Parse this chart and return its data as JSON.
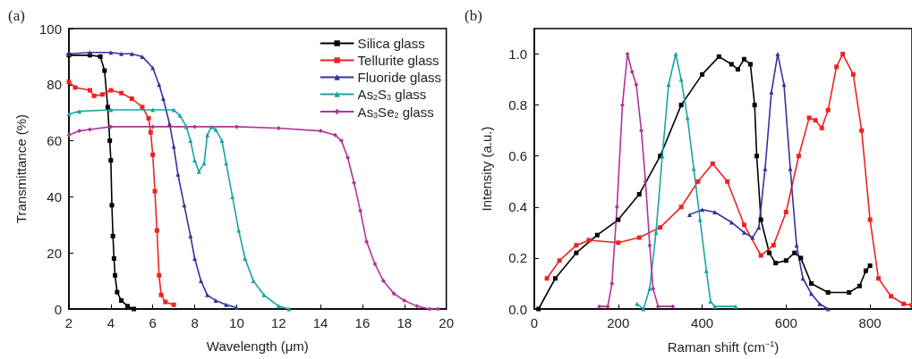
{
  "chart_data": [
    {
      "type": "line",
      "title": "(a)",
      "xlabel": "Wavelength (μm)",
      "ylabel": "Transmittance (%)",
      "xlim": [
        2,
        20
      ],
      "xticks": [
        2,
        4,
        6,
        8,
        10,
        12,
        14,
        16,
        18,
        20
      ],
      "ylim": [
        0,
        100
      ],
      "yticks": [
        0,
        20,
        40,
        60,
        80,
        100
      ],
      "grid": false,
      "legend": "top right",
      "series": [
        {
          "name": "Silica glass",
          "color": "#000000",
          "marker": "square",
          "x": [
            2,
            3,
            3.5,
            3.7,
            3.85,
            3.95,
            4.0,
            4.05,
            4.1,
            4.15,
            4.2,
            4.3,
            4.5,
            4.8,
            5.1
          ],
          "values": [
            90.5,
            90.5,
            90,
            85,
            72,
            60,
            53,
            37,
            26,
            18,
            12,
            6,
            3,
            1,
            0
          ]
        },
        {
          "name": "Tellurite glass",
          "color": "#ee2222",
          "marker": "square",
          "x": [
            2,
            2.3,
            3,
            3.2,
            3.6,
            4,
            4.5,
            5,
            5.5,
            5.8,
            5.9,
            6.0,
            6.1,
            6.2,
            6.3,
            6.4,
            6.6,
            7
          ],
          "values": [
            81,
            79,
            78,
            76,
            76.5,
            78,
            77,
            75,
            72,
            68,
            63,
            55,
            42,
            28,
            12,
            5,
            2.5,
            1.5
          ]
        },
        {
          "name": "Fluoride glass",
          "color": "#333399",
          "marker": "triangle",
          "x": [
            2,
            3,
            4,
            4.5,
            5,
            5.5,
            6,
            6.3,
            6.5,
            6.8,
            7.0,
            7.2,
            7.5,
            7.8,
            8.0,
            8.3,
            8.6,
            9,
            9.5,
            10
          ],
          "values": [
            91,
            91.5,
            91.5,
            91,
            91,
            90,
            86,
            80,
            75,
            66,
            58,
            48,
            37,
            26,
            18,
            10,
            5,
            3,
            1.5,
            0.5
          ]
        },
        {
          "name": "As$_{2}$S$_{3}$ glass",
          "color": "#1aa3a3",
          "marker": "triangle",
          "x": [
            2,
            2.5,
            4,
            6,
            7,
            7.3,
            7.6,
            7.8,
            8.0,
            8.2,
            8.45,
            8.6,
            8.8,
            9.0,
            9.3,
            9.5,
            9.8,
            10.1,
            10.4,
            10.8,
            11.3,
            12,
            12.5
          ],
          "values": [
            69.5,
            70.5,
            71,
            71,
            71,
            69,
            65,
            60,
            53,
            49,
            52,
            62,
            65,
            64,
            60,
            52,
            40,
            28,
            18,
            10,
            5,
            1,
            0
          ]
        },
        {
          "name": "As$_{3}$Se$_{2}$ glass",
          "color": "#b03399",
          "marker": "diamond",
          "x": [
            2,
            2.5,
            3,
            4,
            6,
            8,
            10,
            12,
            14,
            14.7,
            15,
            15.3,
            15.6,
            15.9,
            16.2,
            16.6,
            17,
            17.5,
            18,
            18.6,
            19.2,
            19.6
          ],
          "values": [
            62,
            63.5,
            64,
            65,
            65,
            65,
            65,
            64.5,
            63.5,
            62,
            60,
            54,
            45,
            35,
            24,
            16,
            10,
            5.5,
            3,
            1,
            0,
            0
          ]
        }
      ]
    },
    {
      "type": "line",
      "title": "(b)",
      "xlabel": "Raman shift (cm$^{−1}$)",
      "ylabel": "Intensity (a.u.)",
      "xlim": [
        0,
        900
      ],
      "xticks": [
        0,
        200,
        400,
        600,
        800
      ],
      "ylim": [
        0,
        1.1
      ],
      "yticks": [
        {
          "value": 0,
          "label": "0.0"
        },
        {
          "value": 0.2,
          "label": "0.2"
        },
        {
          "value": 0.4,
          "label": "0.4"
        },
        {
          "value": 0.6,
          "label": "0.6"
        },
        {
          "value": 0.8,
          "label": "0.8"
        },
        {
          "value": 1,
          "label": "1.0"
        }
      ],
      "grid": false,
      "series": [
        {
          "color": "#000000",
          "marker": "square",
          "x": [
            10,
            50,
            100,
            150,
            200,
            250,
            300,
            350,
            400,
            440,
            470,
            485,
            500,
            515,
            525,
            530,
            540,
            560,
            575,
            600,
            620,
            635,
            660,
            700,
            750,
            775,
            790,
            800
          ],
          "values": [
            0,
            0.12,
            0.22,
            0.29,
            0.35,
            0.45,
            0.6,
            0.8,
            0.92,
            0.99,
            0.96,
            0.94,
            0.98,
            0.96,
            0.8,
            0.6,
            0.35,
            0.22,
            0.18,
            0.19,
            0.22,
            0.2,
            0.1,
            0.065,
            0.065,
            0.09,
            0.15,
            0.17
          ]
        },
        {
          "color": "#ee2222",
          "marker": "square",
          "x": [
            30,
            60,
            100,
            130,
            200,
            250,
            300,
            350,
            390,
            425,
            460,
            500,
            540,
            570,
            600,
            630,
            655,
            670,
            685,
            700,
            720,
            735,
            760,
            780,
            800,
            820,
            850,
            880,
            900
          ],
          "values": [
            0.12,
            0.19,
            0.25,
            0.27,
            0.26,
            0.28,
            0.32,
            0.4,
            0.5,
            0.57,
            0.5,
            0.33,
            0.21,
            0.25,
            0.38,
            0.6,
            0.75,
            0.74,
            0.71,
            0.78,
            0.95,
            1.0,
            0.92,
            0.7,
            0.35,
            0.12,
            0.05,
            0.02,
            0.015
          ]
        },
        {
          "color": "#333399",
          "marker": "triangle",
          "x": [
            370,
            400,
            430,
            470,
            500,
            520,
            535,
            550,
            565,
            580,
            595,
            610,
            625,
            640,
            660,
            680,
            700
          ],
          "values": [
            0.37,
            0.39,
            0.38,
            0.34,
            0.3,
            0.28,
            0.32,
            0.55,
            0.85,
            1.0,
            0.88,
            0.55,
            0.25,
            0.12,
            0.06,
            0.02,
            0
          ]
        },
        {
          "color": "#1aa3a3",
          "marker": "triangle",
          "x": [
            245,
            260,
            275,
            290,
            305,
            320,
            337,
            350,
            365,
            380,
            395,
            410,
            420,
            430,
            480
          ],
          "values": [
            0.02,
            0,
            0.08,
            0.3,
            0.6,
            0.88,
            1.0,
            0.9,
            0.75,
            0.55,
            0.35,
            0.15,
            0.03,
            0.01,
            0.01
          ]
        },
        {
          "color": "#b03399",
          "marker": "diamond",
          "x": [
            155,
            175,
            185,
            197,
            210,
            222,
            233,
            243,
            255,
            265,
            275,
            283,
            295,
            330
          ],
          "values": [
            0.01,
            0.01,
            0.1,
            0.4,
            0.8,
            1.0,
            0.93,
            0.88,
            0.7,
            0.5,
            0.25,
            0.08,
            0.01,
            0.01
          ]
        }
      ]
    }
  ]
}
